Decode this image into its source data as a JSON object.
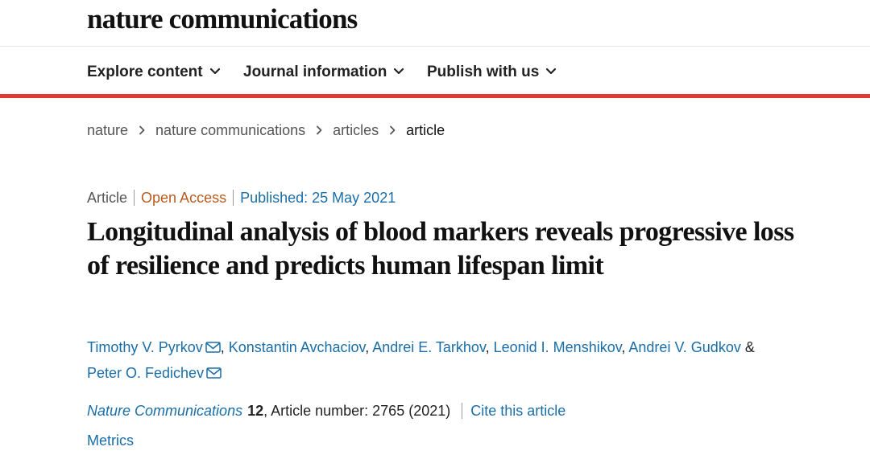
{
  "masthead": {
    "logo": "nature communications"
  },
  "nav": {
    "items": [
      {
        "label": "Explore content",
        "icon": "chevron-down-icon"
      },
      {
        "label": "Journal information",
        "icon": "chevron-down-icon"
      },
      {
        "label": "Publish with us",
        "icon": "chevron-down-icon"
      }
    ],
    "accent_color": "#e03a32"
  },
  "breadcrumb": {
    "items": [
      "nature",
      "nature communications",
      "articles"
    ],
    "current": "article",
    "separator_icon": "chevron-right-icon"
  },
  "article": {
    "type": "Article",
    "access": "Open Access",
    "published": "Published: 25 May 2021",
    "title": "Longitudinal analysis of blood markers reveals progressive loss of resilience and predicts human lifespan limit",
    "authors": [
      {
        "name": "Timothy V. Pyrkov",
        "email_icon": true
      },
      {
        "name": "Konstantin Avchaciov",
        "email_icon": false
      },
      {
        "name": "Andrei E. Tarkhov",
        "email_icon": false
      },
      {
        "name": "Leonid I. Menshikov",
        "email_icon": false
      },
      {
        "name": "Andrei V. Gudkov",
        "email_icon": false
      },
      {
        "name": "Peter O. Fedichev",
        "email_icon": true
      }
    ],
    "ampersand": "&",
    "citation": {
      "journal": "Nature Communications",
      "volume": "12",
      "article_number": ", Article number: 2765 (2021)",
      "cite_label": "Cite this article"
    },
    "metrics_label": "Metrics"
  },
  "colors": {
    "link": "#1a6ea8",
    "open_access": "#b85b1e",
    "text": "#222222"
  }
}
